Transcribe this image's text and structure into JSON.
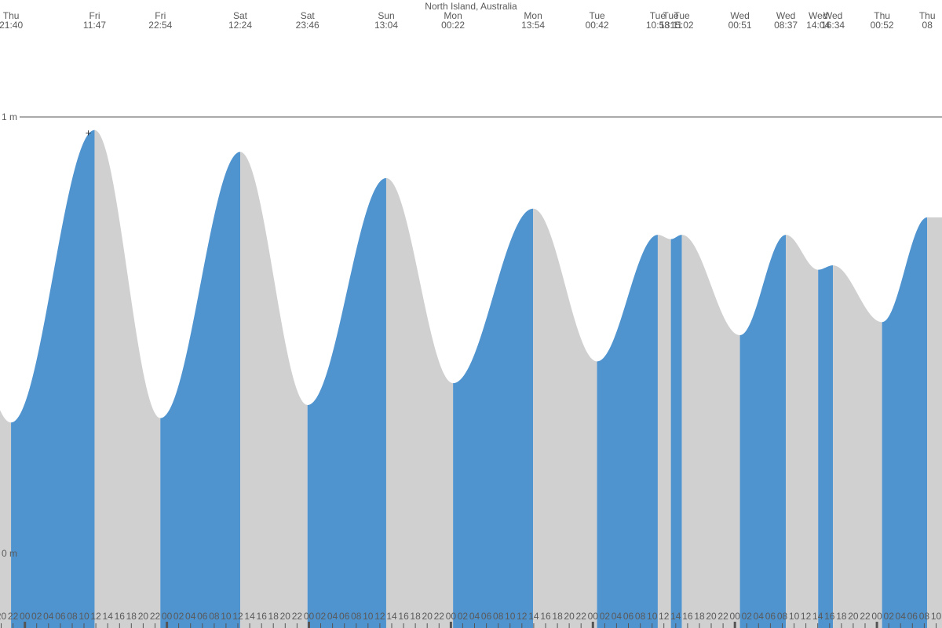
{
  "chart_data": {
    "type": "area",
    "title": "North Island, Australia",
    "y_unit": "m",
    "ylim": [
      0,
      1
    ],
    "y_ticks": [
      {
        "label": "1 m",
        "value": 1
      },
      {
        "label": "0 m",
        "value": 0
      }
    ],
    "series_colors": {
      "rising": "#4f93cf",
      "falling": "#d0d0d0"
    },
    "events": [
      {
        "day": "Thu",
        "time": "21:40",
        "hour": -2.333,
        "height": 0.3
      },
      {
        "day": "Fri",
        "time": "11:47",
        "hour": 11.783,
        "height": 0.97
      },
      {
        "day": "Fri",
        "time": "22:54",
        "hour": 22.9,
        "height": 0.31
      },
      {
        "day": "Sat",
        "time": "12:24",
        "hour": 36.4,
        "height": 0.92
      },
      {
        "day": "Sat",
        "time": "23:46",
        "hour": 47.767,
        "height": 0.34
      },
      {
        "day": "Sun",
        "time": "13:04",
        "hour": 61.067,
        "height": 0.86
      },
      {
        "day": "Mon",
        "time": "00:22",
        "hour": 72.367,
        "height": 0.39
      },
      {
        "day": "Mon",
        "time": "13:54",
        "hour": 85.9,
        "height": 0.79
      },
      {
        "day": "Tue",
        "time": "00:42",
        "hour": 96.7,
        "height": 0.44
      },
      {
        "day": "Tue",
        "time": "10:58",
        "hour": 106.967,
        "height": 0.73
      },
      {
        "day": "Tue",
        "time": "13:11",
        "hour": 109.183,
        "height": 0.72
      },
      {
        "day": "Tue",
        "time": "15:02",
        "hour": 111.033,
        "height": 0.73
      },
      {
        "day": "Wed",
        "time": "00:51",
        "hour": 120.85,
        "height": 0.5
      },
      {
        "day": "Wed",
        "time": "08:37",
        "hour": 128.617,
        "height": 0.73
      },
      {
        "day": "Wed",
        "time": "14:04",
        "hour": 134.067,
        "height": 0.65
      },
      {
        "day": "Wed",
        "time": "16:34",
        "hour": 136.567,
        "height": 0.66
      },
      {
        "day": "Thu",
        "time": "00:52",
        "hour": 144.867,
        "height": 0.53
      },
      {
        "day": "Thu",
        "time": "08",
        "hour": 152.5,
        "height": 0.77
      }
    ],
    "hour_ticks": [
      "00",
      "02",
      "04",
      "06",
      "08",
      "10",
      "12",
      "14",
      "16",
      "18",
      "20",
      "22"
    ],
    "xlim_hours": [
      -4.2,
      155.0
    ]
  }
}
